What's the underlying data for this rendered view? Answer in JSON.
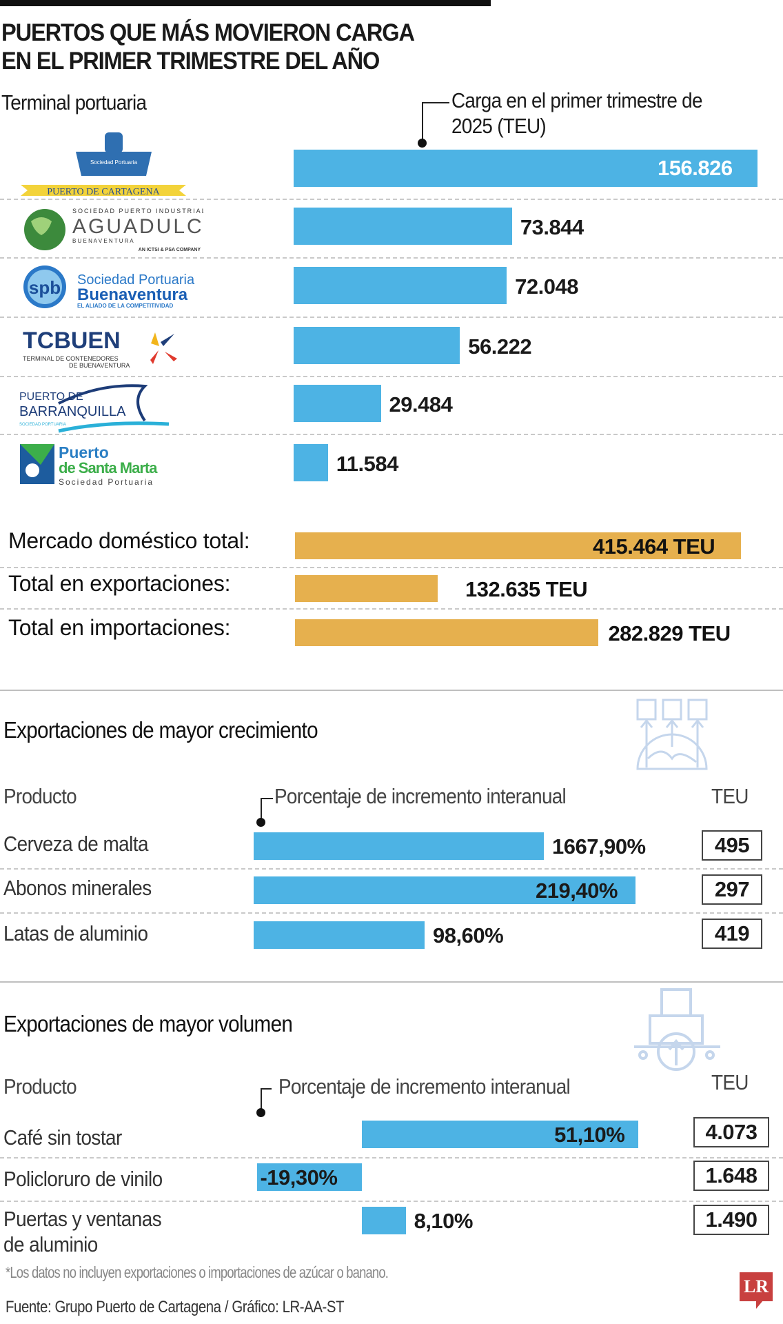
{
  "title": [
    "PUERTOS QUE MÁS MOVIERON CARGA",
    "EN EL PRIMER TRIMESTRE DEL AÑO"
  ],
  "colors": {
    "bar": "#4db3e4",
    "total_bar": "#e6b04e",
    "icon": "#c5d6ec",
    "logo_lr": "#c8403f"
  },
  "chart_data": [
    {
      "type": "bar",
      "orientation": "horizontal",
      "category_header": "Terminal portuaria",
      "value_header": "Carga en el primer trimestre de 2025 (TEU)",
      "categories": [
        "Puerto de Cartagena",
        "Aguadulce",
        "Sociedad Portuaria Buenaventura",
        "TCBUEN",
        "Puerto de Barranquilla",
        "Puerto de Santa Marta"
      ],
      "values": [
        156826,
        73844,
        72048,
        56222,
        29484,
        11584
      ],
      "labels": [
        "156.826",
        "73.844",
        "72.048",
        "56.222",
        "29.484",
        "11.584"
      ]
    },
    {
      "type": "bar",
      "orientation": "horizontal",
      "categories": [
        "Mercado doméstico total:",
        "Total en exportaciones:",
        "Total en importaciones:"
      ],
      "values": [
        415464,
        132635,
        282829
      ],
      "labels": [
        "415.464 TEU",
        "132.635 TEU",
        "282.829 TEU"
      ]
    },
    {
      "type": "bar",
      "orientation": "horizontal",
      "title": "Exportaciones de mayor crecimiento",
      "category_header": "Producto",
      "value_header": "Porcentaje de incremento interanual",
      "teu_header": "TEU",
      "categories": [
        "Cerveza de malta",
        "Abonos minerales",
        "Latas de aluminio"
      ],
      "values": [
        1667.9,
        219.4,
        98.6
      ],
      "labels": [
        "1667,90%",
        "219,40%",
        "98,60%"
      ],
      "teu": [
        "495",
        "297",
        "419"
      ]
    },
    {
      "type": "bar",
      "orientation": "horizontal",
      "title": "Exportaciones de mayor volumen",
      "category_header": "Producto",
      "value_header": "Porcentaje de incremento interanual",
      "teu_header": "TEU",
      "categories": [
        "Café sin tostar",
        "Policloruro de vinilo",
        "Puertas y ventanas",
        "de aluminio"
      ],
      "values": [
        51.1,
        -19.3,
        8.1
      ],
      "labels": [
        "51,10%",
        "-19,30%",
        "8,10%"
      ],
      "teu": [
        "4.073",
        "1.648",
        "1.490"
      ]
    }
  ],
  "logos": {
    "cartagena": {
      "seal": "Sociedad Portuaria Regional De Cartagena S.A.",
      "ribbon": "PUERTO DE CARTAGENA"
    },
    "aguadulce": {
      "top": "SOCIEDAD PUERTO INDUSTRIAL",
      "name": "AGUADULCE",
      "sub": "B U E N A V E N T U R A",
      "tag": "AN ICTSI & PSA COMPANY"
    },
    "spb": {
      "mark": "spb",
      "l1": "Sociedad Portuaria",
      "l2": "Buenaventura",
      "l3": "EL ALIADO DE LA COMPETITIVIDAD"
    },
    "tcbuen": {
      "name": "TCBUEN",
      "l1": "TERMINAL DE CONTENEDORES",
      "l2": "DE BUENAVENTURA"
    },
    "barranquilla": {
      "l1": "PUERTO DE",
      "l2": "BARRANQUILLA",
      "l3": "SOCIEDAD PORTUARIA"
    },
    "santamarta": {
      "l1": "Puerto",
      "l2": "de Santa Marta",
      "l3": "Sociedad Portuaria"
    },
    "lr": "LR"
  },
  "footnote": "*Los datos no incluyen exportaciones o importaciones de azúcar o banano.",
  "source": "Fuente: Grupo Puerto de Cartagena  / Gráfico: LR-AA-ST"
}
